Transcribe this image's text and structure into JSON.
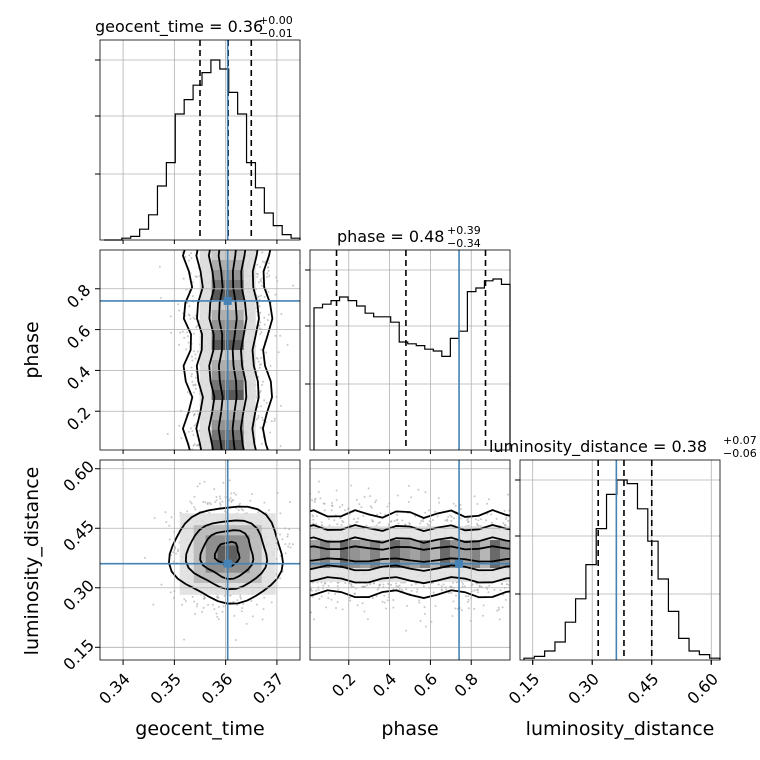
{
  "chart_data": {
    "type": "corner",
    "parameters": [
      "geocent_time",
      "phase",
      "luminosity_distance"
    ],
    "titles": [
      {
        "param": "geocent_time",
        "text": "geocent_time = 0.36",
        "upper": "+0.00",
        "lower": "−0.01"
      },
      {
        "param": "phase",
        "text": "phase = 0.48",
        "upper": "+0.39",
        "lower": "−0.34"
      },
      {
        "param": "luminosity_distance",
        "text": "luminosity_distance = 0.38",
        "upper": "+0.07",
        "lower": "−0.06"
      }
    ],
    "ranges": {
      "geocent_time": [
        0.3355,
        0.3745
      ],
      "phase": [
        0.01,
        0.99
      ],
      "luminosity_distance": [
        0.118,
        0.622
      ]
    },
    "truths": {
      "geocent_time": 0.3604,
      "phase": 0.7404,
      "luminosity_distance": 0.3608
    },
    "quantiles": {
      "geocent_time": [
        0.355,
        0.3605,
        0.365
      ],
      "phase": [
        0.14,
        0.48,
        0.87
      ],
      "luminosity_distance": [
        0.315,
        0.38,
        0.45
      ]
    },
    "ticks": {
      "geocent_time": [
        0.34,
        0.35,
        0.36,
        0.37
      ],
      "phase": [
        0.2,
        0.4,
        0.6,
        0.8
      ],
      "luminosity_distance": [
        0.15,
        0.3,
        0.45,
        0.6
      ]
    },
    "tick_labels": {
      "geocent_time": [
        "0.34",
        "0.35",
        "0.36",
        "0.37"
      ],
      "phase": [
        "0.2",
        "0.4",
        "0.6",
        "0.8"
      ],
      "luminosity_distance": [
        "0.15",
        "0.30",
        "0.45",
        "0.60"
      ]
    },
    "histograms": {
      "geocent_time": [
        0,
        0,
        0.01,
        0.02,
        0.06,
        0.14,
        0.3,
        0.43,
        0.7,
        0.78,
        0.86,
        0.93,
        1.0,
        0.95,
        0.82,
        0.7,
        0.43,
        0.29,
        0.15,
        0.08,
        0.03,
        0.01
      ],
      "phase": [
        0.79,
        0.81,
        0.83,
        0.85,
        0.83,
        0.8,
        0.76,
        0.74,
        0.74,
        0.71,
        0.6,
        0.59,
        0.58,
        0.56,
        0.55,
        0.52,
        0.62,
        0.66,
        0.88,
        0.9,
        0.94,
        0.95,
        0.92
      ],
      "luminosity_distance": [
        0.01,
        0.02,
        0.05,
        0.1,
        0.21,
        0.34,
        0.53,
        0.73,
        0.92,
        1.0,
        0.98,
        0.84,
        0.66,
        0.45,
        0.27,
        0.12,
        0.05,
        0.03,
        0.01
      ]
    },
    "axis_labels": {
      "geocent_time": "geocent_time",
      "phase": "phase",
      "luminosity_distance": "luminosity_distance"
    },
    "grid": true
  }
}
